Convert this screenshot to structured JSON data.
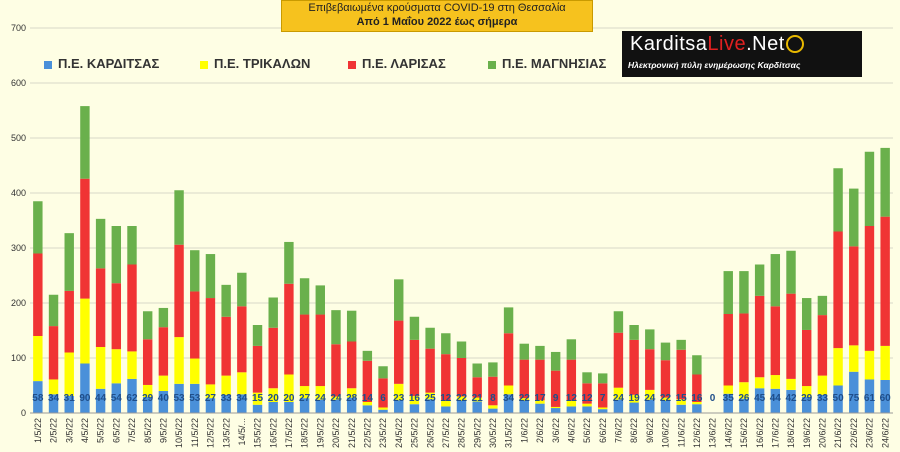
{
  "title": {
    "line1": "Επιβεβαιωμένα κρούσματα COVID-19 στη Θεσσαλία",
    "line2": "Από 1 Μαΐου 2022 έως σήμερα"
  },
  "logo": {
    "name_part1": "Karditsa",
    "name_part2": "Live",
    "name_part3": ".Net",
    "tagline": "Ηλεκτρονική πύλη ενημέρωσης Καρδίτσας"
  },
  "colors": {
    "background": "#fefee4",
    "grid": "#d8d8c8",
    "label": "#1f4e8a",
    "karditsa": "#4a90d9",
    "trikala": "#ffff00",
    "larisa": "#f03434",
    "magnisia": "#6ab04c"
  },
  "chart_data": {
    "type": "bar",
    "stacked": true,
    "title": "Επιβεβαιωμένα κρούσματα COVID-19 στη Θεσσαλία",
    "subtitle": "Από 1 Μαΐου 2022 έως σήμερα",
    "ylim": [
      0,
      700
    ],
    "yticks": [
      0,
      100,
      200,
      300,
      400,
      500,
      600,
      700
    ],
    "grid": true,
    "legend_position": "top",
    "categories": [
      "1/5/22",
      "2/5/22",
      "3/5/22",
      "4/5/22",
      "5/5/22",
      "6/5/22",
      "7/5/22",
      "8/5/22",
      "9/5/22",
      "10/5/22",
      "11/5/22",
      "12/5/22",
      "13/5/22",
      "14/5/22",
      "15/5/22",
      "16/5/22",
      "17/5/22",
      "18/5/22",
      "19/5/22",
      "20/5/22",
      "21/5/22",
      "22/5/22",
      "23/5/22",
      "24/5/22",
      "25/5/22",
      "26/5/22",
      "27/5/22",
      "28/5/22",
      "29/5/22",
      "30/5/22",
      "31/5/22",
      "1/6/22",
      "2/6/22",
      "3/6/22",
      "4/6/22",
      "5/6/22",
      "6/6/22",
      "7/6/22",
      "8/6/22",
      "9/6/22",
      "10/6/22",
      "11/6/22",
      "12/6/22",
      "13/6/22",
      "14/6/22",
      "15/6/22",
      "16/6/22",
      "17/6/22",
      "18/6/22",
      "19/6/22",
      "20/6/22",
      "21/6/22",
      "22/6/22",
      "23/6/22",
      "24/6/22"
    ],
    "tick_labels": [
      "1/5/22",
      "2/5/22",
      "3/5/22",
      "4/5/22",
      "5/5/22",
      "6/5/22",
      "7/5/22",
      "8/5/22",
      "9/5/22",
      "10/5/22",
      "11/5/22",
      "12/5/22",
      "13/5/22",
      "14/5/...",
      "15/5/22",
      "16/5/22",
      "17/5/22",
      "18/5/22",
      "19/5/22",
      "20/5/22",
      "21/5/22",
      "22/5/22",
      "23/5/22",
      "24/5/22",
      "25/5/22",
      "26/5/22",
      "27/5/22",
      "28/5/22",
      "29/5/22",
      "30/5/22",
      "31/5/22",
      "1/6/22",
      "2/6/22",
      "3/6/22",
      "4/6/22",
      "5/6/22",
      "6/6/22",
      "7/6/22",
      "8/6/22",
      "9/6/22",
      "10/6/22",
      "11/6/22",
      "12/6/22",
      "13/6/22",
      "14/6/22",
      "15/6/22",
      "16/6/22",
      "17/6/22",
      "18/6/22",
      "19/6/22",
      "20/6/22",
      "21/6/22",
      "22/6/22",
      "23/6/22",
      "24/6/22"
    ],
    "series": [
      {
        "name": "Π.Ε. ΚΑΡΔΙΤΣΑΣ",
        "color": "#4a90d9",
        "values": [
          58,
          34,
          31,
          90,
          44,
          54,
          62,
          29,
          40,
          53,
          53,
          27,
          33,
          34,
          15,
          20,
          20,
          27,
          24,
          24,
          28,
          14,
          6,
          23,
          16,
          25,
          12,
          22,
          21,
          8,
          34,
          22,
          17,
          9,
          12,
          12,
          7,
          24,
          19,
          24,
          22,
          15,
          16,
          0,
          35,
          26,
          45,
          44,
          42,
          29,
          33,
          50,
          75,
          61,
          60
        ]
      },
      {
        "name": "Π.Ε. ΤΡΙΚΑΛΩΝ",
        "color": "#ffff00",
        "values": [
          82,
          27,
          79,
          118,
          76,
          62,
          50,
          22,
          28,
          85,
          46,
          25,
          35,
          40,
          22,
          25,
          50,
          22,
          25,
          6,
          17,
          6,
          4,
          30,
          15,
          12,
          10,
          8,
          7,
          6,
          16,
          5,
          6,
          2,
          10,
          5,
          3,
          22,
          14,
          18,
          6,
          10,
          4,
          0,
          15,
          30,
          20,
          25,
          20,
          20,
          35,
          68,
          48,
          52,
          62
        ]
      },
      {
        "name": "Π.Ε. ΛΑΡΙΣΑΣ",
        "color": "#f03434",
        "values": [
          150,
          97,
          112,
          218,
          143,
          120,
          158,
          83,
          88,
          168,
          122,
          157,
          107,
          120,
          85,
          110,
          165,
          130,
          130,
          95,
          85,
          75,
          53,
          115,
          102,
          80,
          85,
          70,
          37,
          52,
          95,
          70,
          74,
          66,
          75,
          37,
          44,
          100,
          100,
          74,
          68,
          90,
          50,
          0,
          130,
          125,
          148,
          125,
          155,
          102,
          110,
          212,
          180,
          227,
          235
        ]
      },
      {
        "name": "Π.Ε. ΜΑΓΝΗΣΙΑΣ",
        "color": "#6ab04c",
        "values": [
          95,
          57,
          105,
          132,
          90,
          104,
          70,
          51,
          35,
          99,
          75,
          80,
          58,
          61,
          38,
          55,
          76,
          66,
          53,
          62,
          56,
          18,
          22,
          75,
          42,
          38,
          38,
          30,
          25,
          26,
          47,
          29,
          25,
          34,
          37,
          20,
          18,
          39,
          27,
          36,
          32,
          18,
          35,
          0,
          78,
          77,
          57,
          95,
          78,
          58,
          35,
          115,
          105,
          135,
          125
        ]
      }
    ]
  }
}
